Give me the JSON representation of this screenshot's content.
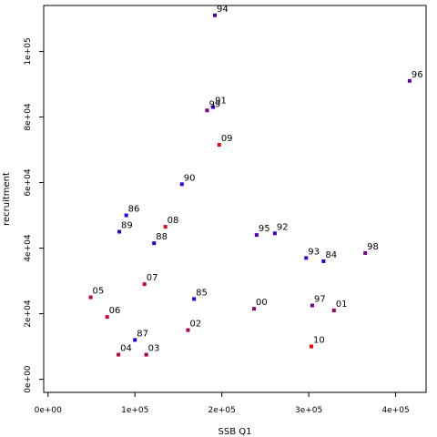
{
  "chart_data": {
    "type": "scatter",
    "title": "",
    "xlabel": "SSB Q1",
    "ylabel": "recruitment",
    "xlim": [
      -5000,
      435000
    ],
    "ylim": [
      -4000,
      114000
    ],
    "grid": false,
    "x_ticks": [
      {
        "value": 0,
        "label": "0e+00"
      },
      {
        "value": 100000,
        "label": "1e+05"
      },
      {
        "value": 200000,
        "label": "2e+05"
      },
      {
        "value": 300000,
        "label": "3e+05"
      },
      {
        "value": 400000,
        "label": "4e+05"
      }
    ],
    "y_ticks": [
      {
        "value": 0,
        "label": "0e+00"
      },
      {
        "value": 20000,
        "label": "2e+04"
      },
      {
        "value": 40000,
        "label": "4e+04"
      },
      {
        "value": 60000,
        "label": "6e+04"
      },
      {
        "value": 80000,
        "label": "8e+04"
      },
      {
        "value": 100000,
        "label": "1e+05"
      }
    ],
    "points": [
      {
        "label": "84",
        "x": 317000,
        "y": 36000,
        "color": "#2200dd"
      },
      {
        "label": "85",
        "x": 168000,
        "y": 24500,
        "color": "#2200dd"
      },
      {
        "label": "86",
        "x": 90000,
        "y": 50000,
        "color": "#2200dd"
      },
      {
        "label": "87",
        "x": 100000,
        "y": 12000,
        "color": "#2200dd"
      },
      {
        "label": "88",
        "x": 122000,
        "y": 41500,
        "color": "#2200dd"
      },
      {
        "label": "89",
        "x": 82000,
        "y": 45000,
        "color": "#2200dd"
      },
      {
        "label": "90",
        "x": 154000,
        "y": 59500,
        "color": "#3300cc"
      },
      {
        "label": "91",
        "x": 190000,
        "y": 83000,
        "color": "#3300cc"
      },
      {
        "label": "92",
        "x": 261000,
        "y": 44500,
        "color": "#4400bb"
      },
      {
        "label": "93",
        "x": 297000,
        "y": 37000,
        "color": "#4400bb"
      },
      {
        "label": "94",
        "x": 192000,
        "y": 111000,
        "color": "#5500aa"
      },
      {
        "label": "95",
        "x": 240000,
        "y": 44000,
        "color": "#5500aa"
      },
      {
        "label": "96",
        "x": 416000,
        "y": 91000,
        "color": "#6600aa"
      },
      {
        "label": "97",
        "x": 304000,
        "y": 22500,
        "color": "#770099"
      },
      {
        "label": "98",
        "x": 365000,
        "y": 38500,
        "color": "#770099"
      },
      {
        "label": "99",
        "x": 183000,
        "y": 82000,
        "color": "#880088"
      },
      {
        "label": "00",
        "x": 237000,
        "y": 21500,
        "color": "#880077"
      },
      {
        "label": "01",
        "x": 329000,
        "y": 21000,
        "color": "#990066"
      },
      {
        "label": "02",
        "x": 161000,
        "y": 15000,
        "color": "#aa0055"
      },
      {
        "label": "03",
        "x": 113000,
        "y": 7500,
        "color": "#aa0055"
      },
      {
        "label": "04",
        "x": 81000,
        "y": 7500,
        "color": "#bb0044"
      },
      {
        "label": "05",
        "x": 49000,
        "y": 25000,
        "color": "#cc0033"
      },
      {
        "label": "06",
        "x": 68000,
        "y": 19000,
        "color": "#cc0033"
      },
      {
        "label": "07",
        "x": 111000,
        "y": 29000,
        "color": "#dd0022"
      },
      {
        "label": "08",
        "x": 135000,
        "y": 46500,
        "color": "#dd0022"
      },
      {
        "label": "09",
        "x": 197000,
        "y": 71500,
        "color": "#ee0011"
      },
      {
        "label": "10",
        "x": 303000,
        "y": 10000,
        "color": "#ff0000"
      }
    ]
  }
}
